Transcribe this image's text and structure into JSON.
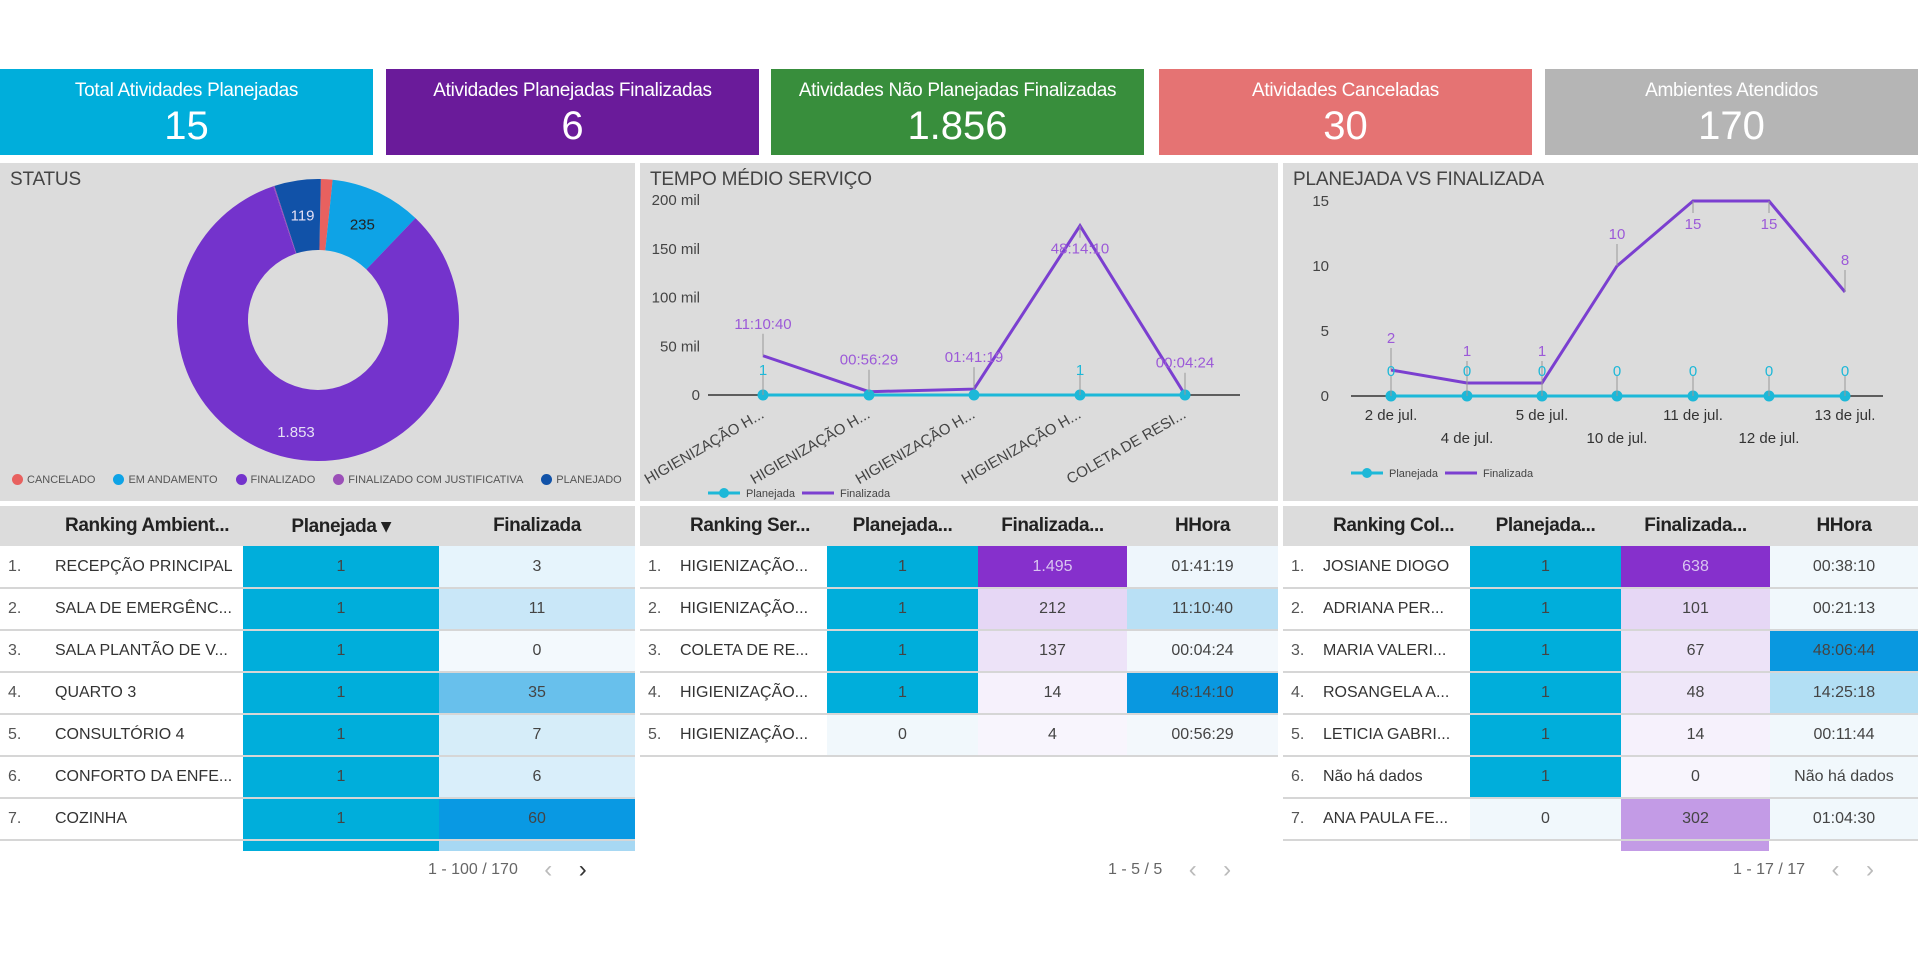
{
  "kpis": [
    {
      "label": "Total Atividades Planejadas",
      "value": "15",
      "color": "#00aedb"
    },
    {
      "label": "Atividades Planejadas Finalizadas",
      "value": "6",
      "color": "#6a1b9a"
    },
    {
      "label": "Atividades Não Planejadas Finalizadas",
      "value": "1.856",
      "color": "#388e3c"
    },
    {
      "label": "Atividades Canceladas",
      "value": "30",
      "color": "#e57373"
    },
    {
      "label": "Ambientes Atendidos",
      "value": "170",
      "color": "#b5b5b5"
    }
  ],
  "chart_data": [
    {
      "type": "pie",
      "title": "STATUS",
      "donut": true,
      "categories": [
        "CANCELADO",
        "EM ANDAMENTO",
        "FINALIZADO",
        "FINALIZADO COM JUSTIFICATIVA",
        "PLANEJADO"
      ],
      "values": [
        30,
        235,
        1853,
        3,
        119
      ],
      "data_labels": [
        "",
        "235",
        "1.853",
        "",
        "119"
      ],
      "colors": [
        "#e8615f",
        "#0ea3e6",
        "#7433cc",
        "#9b4fb8",
        "#1152a8"
      ],
      "legend": "bottom"
    },
    {
      "type": "line",
      "title": "TEMPO MÉDIO SERVIÇO",
      "categories": [
        "HIGIENIZAÇÃO H...",
        "HIGIENIZAÇÃO H...",
        "HIGIENIZAÇÃO H...",
        "HIGIENIZAÇÃO H...",
        "COLETA DE RESI..."
      ],
      "series": [
        {
          "name": "Planejada",
          "values": [
            1,
            1,
            1,
            1,
            1
          ],
          "labels": [
            "1",
            "",
            "",
            "1",
            ""
          ],
          "color": "#1db8d8",
          "markers": true
        },
        {
          "name": "Finalizada",
          "values": [
            40240,
            3389,
            6079,
            173650,
            264
          ],
          "labels": [
            "11:10:40",
            "00:56:29",
            "01:41:19",
            "48:14:10",
            "00:04:24"
          ],
          "color": "#7b3fd0",
          "markers": false
        }
      ],
      "yticks": [
        "0",
        "50 mil",
        "100 mil",
        "150 mil",
        "200 mil"
      ],
      "ylim": [
        0,
        200000
      ],
      "legend": "bottom-left"
    },
    {
      "type": "line",
      "title": "PLANEJADA VS FINALIZADA",
      "categories": [
        "2 de jul.",
        "4 de jul.",
        "5 de jul.",
        "10 de jul.",
        "11 de jul.",
        "12 de jul.",
        "13 de jul."
      ],
      "series": [
        {
          "name": "Planejada",
          "values": [
            0,
            0,
            0,
            0,
            0,
            0,
            0
          ],
          "color": "#1db8d8",
          "markers": true
        },
        {
          "name": "Finalizada",
          "values": [
            2,
            1,
            1,
            10,
            15,
            15,
            8
          ],
          "color": "#7b3fd0",
          "markers": false
        }
      ],
      "yticks": [
        "0",
        "5",
        "10",
        "15"
      ],
      "ylim": [
        0,
        15
      ],
      "legend": "bottom-left"
    }
  ],
  "tables": {
    "ambientes": {
      "headers": [
        "Ranking Ambient...",
        "Planejada ▾",
        "Finalizada"
      ],
      "rows": [
        {
          "idx": "1.",
          "name": "RECEPÇÃO PRINCIPAL",
          "c1": "1",
          "c2": "3"
        },
        {
          "idx": "2.",
          "name": "SALA DE EMERGÊNC...",
          "c1": "1",
          "c2": "11"
        },
        {
          "idx": "3.",
          "name": "SALA PLANTÃO DE V...",
          "c1": "1",
          "c2": "0"
        },
        {
          "idx": "4.",
          "name": "QUARTO 3",
          "c1": "1",
          "c2": "35"
        },
        {
          "idx": "5.",
          "name": "CONSULTÓRIO 4",
          "c1": "1",
          "c2": "7"
        },
        {
          "idx": "6.",
          "name": "CONFORTO DA ENFE...",
          "c1": "1",
          "c2": "6"
        },
        {
          "idx": "7.",
          "name": "COZINHA",
          "c1": "1",
          "c2": "60"
        }
      ],
      "pager": "1 - 100 / 170",
      "prev": "‹",
      "next": "›"
    },
    "servicos": {
      "headers": [
        "Ranking Ser...",
        "Planejada...",
        "Finalizada...",
        "HHora"
      ],
      "rows": [
        {
          "idx": "1.",
          "name": "HIGIENIZAÇÃO...",
          "c1": "1",
          "c2": "1.495",
          "c3": "01:41:19"
        },
        {
          "idx": "2.",
          "name": "HIGIENIZAÇÃO...",
          "c1": "1",
          "c2": "212",
          "c3": "11:10:40"
        },
        {
          "idx": "3.",
          "name": "COLETA DE RE...",
          "c1": "1",
          "c2": "137",
          "c3": "00:04:24"
        },
        {
          "idx": "4.",
          "name": "HIGIENIZAÇÃO...",
          "c1": "1",
          "c2": "14",
          "c3": "48:14:10"
        },
        {
          "idx": "5.",
          "name": "HIGIENIZAÇÃO...",
          "c1": "0",
          "c2": "4",
          "c3": "00:56:29"
        }
      ],
      "pager": "1 - 5 / 5",
      "prev": "‹",
      "next": "›"
    },
    "colaboradores": {
      "headers": [
        "Ranking Col...",
        "Planejada...",
        "Finalizada...",
        "HHora"
      ],
      "rows": [
        {
          "idx": "1.",
          "name": "JOSIANE DIOGO",
          "c1": "1",
          "c2": "638",
          "c3": "00:38:10"
        },
        {
          "idx": "2.",
          "name": "ADRIANA PER...",
          "c1": "1",
          "c2": "101",
          "c3": "00:21:13"
        },
        {
          "idx": "3.",
          "name": "MARIA VALERI...",
          "c1": "1",
          "c2": "67",
          "c3": "48:06:44"
        },
        {
          "idx": "4.",
          "name": "ROSANGELA A...",
          "c1": "1",
          "c2": "48",
          "c3": "14:25:18"
        },
        {
          "idx": "5.",
          "name": "LETICIA GABRI...",
          "c1": "1",
          "c2": "14",
          "c3": "00:11:44"
        },
        {
          "idx": "6.",
          "name": "Não há dados",
          "c1": "1",
          "c2": "0",
          "c3": "Não há dados"
        },
        {
          "idx": "7.",
          "name": "ANA PAULA FE...",
          "c1": "0",
          "c2": "302",
          "c3": "01:04:30"
        }
      ],
      "pager": "1 - 17 / 17",
      "prev": "‹",
      "next": "›"
    }
  }
}
